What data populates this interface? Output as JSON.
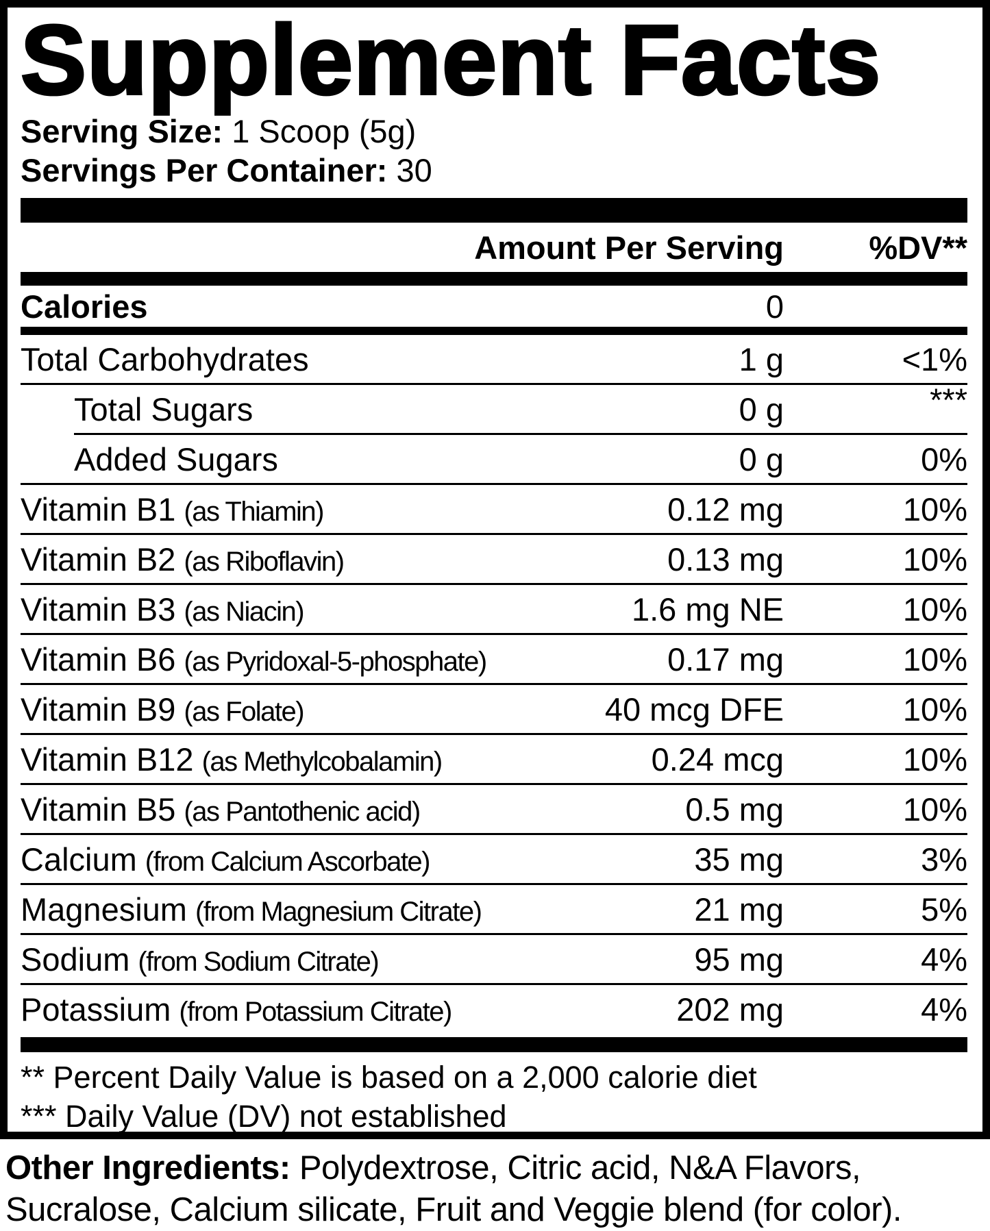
{
  "title": "Supplement Facts",
  "serving": {
    "size_label": "Serving Size:",
    "size_value": "1 Scoop (5g)",
    "per_container_label": "Servings Per Container:",
    "per_container_value": "30"
  },
  "table": {
    "header": {
      "amount": "Amount Per Serving",
      "dv": "%DV**"
    },
    "rows": [
      {
        "name": "Calories",
        "qualifier": "",
        "amount": "0",
        "dv": "",
        "indent": false,
        "calories": true,
        "dv_super": false,
        "divider_after": "thick"
      },
      {
        "name": "Total Carbohydrates",
        "qualifier": "",
        "amount": "1 g",
        "dv": "<1%",
        "indent": false,
        "calories": false,
        "dv_super": false,
        "divider_after": "thin"
      },
      {
        "name": "Total Sugars",
        "qualifier": "",
        "amount": "0 g",
        "dv": "***",
        "indent": true,
        "calories": false,
        "dv_super": true,
        "divider_after": "thin-indent"
      },
      {
        "name": "Added Sugars",
        "qualifier": "",
        "amount": "0 g",
        "dv": "0%",
        "indent": true,
        "calories": false,
        "dv_super": false,
        "divider_after": "thin"
      },
      {
        "name": "Vitamin B1",
        "qualifier": "(as Thiamin)",
        "amount": "0.12 mg",
        "dv": "10%",
        "indent": false,
        "calories": false,
        "dv_super": false,
        "divider_after": "thin"
      },
      {
        "name": "Vitamin B2",
        "qualifier": "(as Riboflavin)",
        "amount": "0.13 mg",
        "dv": "10%",
        "indent": false,
        "calories": false,
        "dv_super": false,
        "divider_after": "thin"
      },
      {
        "name": "Vitamin B3",
        "qualifier": "(as Niacin)",
        "amount": "1.6 mg NE",
        "dv": "10%",
        "indent": false,
        "calories": false,
        "dv_super": false,
        "divider_after": "thin"
      },
      {
        "name": "Vitamin B6",
        "qualifier": "(as Pyridoxal-5-phosphate)",
        "amount": "0.17 mg",
        "dv": "10%",
        "indent": false,
        "calories": false,
        "dv_super": false,
        "divider_after": "thin"
      },
      {
        "name": "Vitamin B9",
        "qualifier": "(as Folate)",
        "amount": "40 mcg DFE",
        "dv": "10%",
        "indent": false,
        "calories": false,
        "dv_super": false,
        "divider_after": "thin"
      },
      {
        "name": "Vitamin B12",
        "qualifier": "(as Methylcobalamin)",
        "amount": "0.24 mcg",
        "dv": "10%",
        "indent": false,
        "calories": false,
        "dv_super": false,
        "divider_after": "thin"
      },
      {
        "name": "Vitamin B5",
        "qualifier": "(as Pantothenic acid)",
        "amount": "0.5 mg",
        "dv": "10%",
        "indent": false,
        "calories": false,
        "dv_super": false,
        "divider_after": "thin"
      },
      {
        "name": "Calcium",
        "qualifier": "(from Calcium Ascorbate)",
        "amount": "35 mg",
        "dv": "3%",
        "indent": false,
        "calories": false,
        "dv_super": false,
        "divider_after": "thin"
      },
      {
        "name": "Magnesium",
        "qualifier": "(from Magnesium Citrate)",
        "amount": "21 mg",
        "dv": "5%",
        "indent": false,
        "calories": false,
        "dv_super": false,
        "divider_after": "thin"
      },
      {
        "name": "Sodium",
        "qualifier": "(from Sodium Citrate)",
        "amount": "95 mg",
        "dv": "4%",
        "indent": false,
        "calories": false,
        "dv_super": false,
        "divider_after": "thin"
      },
      {
        "name": "Potassium",
        "qualifier": "(from Potassium Citrate)",
        "amount": "202 mg",
        "dv": "4%",
        "indent": false,
        "calories": false,
        "dv_super": false,
        "divider_after": "none"
      }
    ]
  },
  "footnotes": [
    "** Percent Daily Value is based on a 2,000 calorie diet",
    "*** Daily Value (DV) not established"
  ],
  "other_ingredients": {
    "label": "Other Ingredients:",
    "text": "Polydextrose, Citric acid, N&A Flavors, Sucralose, Calcium silicate, Fruit and Veggie blend (for color)."
  },
  "colors": {
    "ink": "#000000",
    "background": "#ffffff"
  }
}
